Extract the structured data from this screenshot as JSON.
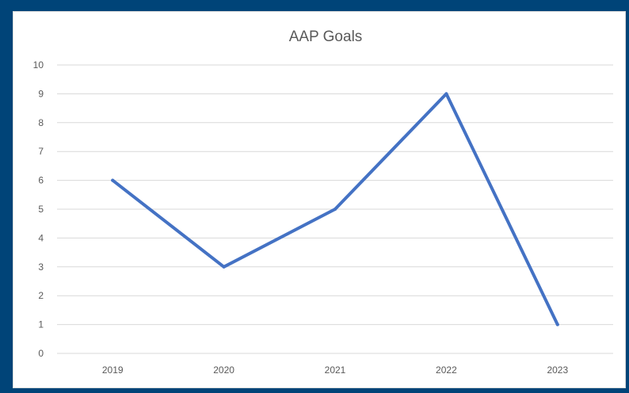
{
  "chart_data": {
    "type": "line",
    "title": "AAP Goals",
    "xlabel": "",
    "ylabel": "",
    "categories": [
      "2019",
      "2020",
      "2021",
      "2022",
      "2023"
    ],
    "series": [
      {
        "values": [
          6,
          3,
          5,
          9,
          1
        ]
      }
    ],
    "ylim": [
      0,
      10
    ],
    "yticks": [
      "0",
      "1",
      "2",
      "3",
      "4",
      "5",
      "6",
      "7",
      "8",
      "9",
      "10"
    ],
    "grid": true,
    "legend": "none",
    "line_color": "#4472C4"
  }
}
